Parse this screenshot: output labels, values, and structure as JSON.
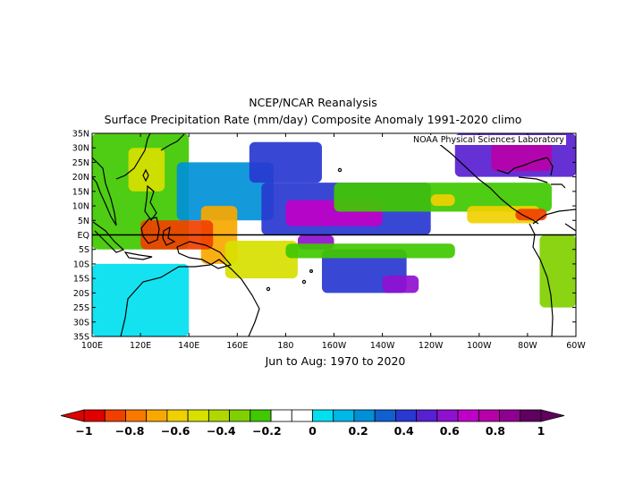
{
  "chart_data": {
    "type": "heatmap",
    "title": "NCEP/NCAR Reanalysis",
    "subtitle": "Surface Precipitation Rate (mm/day) Composite Anomaly 1991-2020 climo",
    "period": "Jun to Aug: 1970 to 2020",
    "credit": "NOAA Physical Sciences Laboratory",
    "xlim": [
      100,
      300
    ],
    "ylim": [
      -35,
      35
    ],
    "x_ticks": [
      {
        "v": 100,
        "label": "100E"
      },
      {
        "v": 120,
        "label": "120E"
      },
      {
        "v": 140,
        "label": "140E"
      },
      {
        "v": 160,
        "label": "160E"
      },
      {
        "v": 180,
        "label": "180"
      },
      {
        "v": 200,
        "label": "160W"
      },
      {
        "v": 220,
        "label": "140W"
      },
      {
        "v": 240,
        "label": "120W"
      },
      {
        "v": 260,
        "label": "100W"
      },
      {
        "v": 280,
        "label": "80W"
      },
      {
        "v": 300,
        "label": "60W"
      }
    ],
    "y_ticks": [
      {
        "v": 35,
        "label": "35N"
      },
      {
        "v": 30,
        "label": "30N"
      },
      {
        "v": 25,
        "label": "25N"
      },
      {
        "v": 20,
        "label": "20N"
      },
      {
        "v": 15,
        "label": "15N"
      },
      {
        "v": 10,
        "label": "10N"
      },
      {
        "v": 5,
        "label": "5N"
      },
      {
        "v": 0,
        "label": "EQ"
      },
      {
        "v": -5,
        "label": "5S"
      },
      {
        "v": -10,
        "label": "10S"
      },
      {
        "v": -15,
        "label": "15S"
      },
      {
        "v": -20,
        "label": "20S"
      },
      {
        "v": -25,
        "label": "25S"
      },
      {
        "v": -30,
        "label": "30S"
      },
      {
        "v": -35,
        "label": "35S"
      }
    ],
    "colorbar": {
      "colors": [
        "#e00000",
        "#f04000",
        "#f87800",
        "#f8a800",
        "#f0d000",
        "#d8e000",
        "#b0d800",
        "#80d000",
        "#40c800",
        "#ffffff",
        "#ffffff",
        "#00e0f0",
        "#00b8e8",
        "#0090d8",
        "#1060d0",
        "#2838d0",
        "#5820d0",
        "#9010d0",
        "#c000c8",
        "#b800a8",
        "#900090",
        "#600060"
      ],
      "ticks": [
        {
          "v": -1,
          "label": "−1"
        },
        {
          "v": -0.8,
          "label": "−0.8"
        },
        {
          "v": -0.6,
          "label": "−0.6"
        },
        {
          "v": -0.4,
          "label": "−0.4"
        },
        {
          "v": -0.2,
          "label": "−0.2"
        },
        {
          "v": 0,
          "label": "0"
        },
        {
          "v": 0.2,
          "label": "0.2"
        },
        {
          "v": 0.4,
          "label": "0.4"
        },
        {
          "v": 0.6,
          "label": "0.6"
        },
        {
          "v": 0.8,
          "label": "0.8"
        },
        {
          "v": 1,
          "label": "1"
        }
      ],
      "range": [
        -1,
        1
      ]
    },
    "anomaly_regions": [
      {
        "lon": [
          100,
          300
        ],
        "lat": [
          -35,
          35
        ],
        "value": -0.05
      },
      {
        "lon": [
          100,
          140
        ],
        "lat": [
          -5,
          35
        ],
        "value": -0.25
      },
      {
        "lon": [
          135,
          175
        ],
        "lat": [
          5,
          25
        ],
        "value": 0.25
      },
      {
        "lon": [
          115,
          130
        ],
        "lat": [
          15,
          30
        ],
        "value": -0.5
      },
      {
        "lon": [
          145,
          160
        ],
        "lat": [
          -10,
          10
        ],
        "value": -0.7
      },
      {
        "lon": [
          120,
          150
        ],
        "lat": [
          -5,
          5
        ],
        "value": -0.85
      },
      {
        "lon": [
          155,
          185
        ],
        "lat": [
          -15,
          -2
        ],
        "value": -0.5
      },
      {
        "lon": [
          170,
          240
        ],
        "lat": [
          0,
          18
        ],
        "value": 0.45
      },
      {
        "lon": [
          180,
          220
        ],
        "lat": [
          3,
          12
        ],
        "value": 0.7
      },
      {
        "lon": [
          165,
          195
        ],
        "lat": [
          18,
          32
        ],
        "value": 0.4
      },
      {
        "lon": [
          185,
          200
        ],
        "lat": [
          -5,
          0
        ],
        "value": 0.6
      },
      {
        "lon": [
          195,
          230
        ],
        "lat": [
          -20,
          -5
        ],
        "value": 0.4
      },
      {
        "lon": [
          220,
          235
        ],
        "lat": [
          -20,
          -14
        ],
        "value": 0.55
      },
      {
        "lon": [
          200,
          290
        ],
        "lat": [
          8,
          18
        ],
        "value": -0.25
      },
      {
        "lon": [
          255,
          285
        ],
        "lat": [
          4,
          10
        ],
        "value": -0.6
      },
      {
        "lon": [
          275,
          288
        ],
        "lat": [
          5,
          9
        ],
        "value": -0.9
      },
      {
        "lon": [
          240,
          250
        ],
        "lat": [
          10,
          14
        ],
        "value": -0.6
      },
      {
        "lon": [
          180,
          250
        ],
        "lat": [
          -8,
          -3
        ],
        "value": -0.25
      },
      {
        "lon": [
          250,
          300
        ],
        "lat": [
          20,
          35
        ],
        "value": 0.5
      },
      {
        "lon": [
          265,
          290
        ],
        "lat": [
          22,
          32
        ],
        "value": 0.75
      },
      {
        "lon": [
          285,
          300
        ],
        "lat": [
          -25,
          0
        ],
        "value": -0.3
      },
      {
        "lon": [
          100,
          140
        ],
        "lat": [
          -35,
          -10
        ],
        "value": 0.05
      },
      {
        "lon": [
          240,
          285
        ],
        "lat": [
          -35,
          -10
        ],
        "value": -0.1
      }
    ]
  }
}
